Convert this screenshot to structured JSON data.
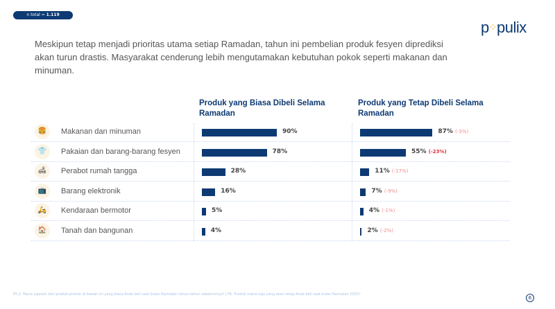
{
  "badge": {
    "label": "n total = ",
    "value": "1.119"
  },
  "logo": "populix",
  "intro": "Meskipun tetap menjadi prioritas utama setiap Ramadan, tahun ini pembelian produk fesyen diprediksi akan turun drastis. Masyarakat cenderung lebih mengutamakan kebutuhan pokok seperti makanan dan minuman.",
  "chart_data": {
    "type": "bar",
    "orientation": "horizontal",
    "categories": [
      "Makanan dan minuman",
      "Pakaian dan barang-barang fesyen",
      "Perabot rumah tangga",
      "Barang elektronik",
      "Kendaraan bermotor",
      "Tanah dan bangunan"
    ],
    "icons": [
      "food-icon",
      "clothing-icon",
      "furniture-icon",
      "electronics-icon",
      "motorcycle-icon",
      "house-icon"
    ],
    "icon_glyphs": [
      "🍔",
      "👕",
      "🛋",
      "📺",
      "🛵",
      "🏠"
    ],
    "series": [
      {
        "name": "Produk yang Biasa Dibeli Selama Ramadan",
        "values": [
          90,
          78,
          28,
          16,
          5,
          4
        ],
        "labels": [
          "90%",
          "78%",
          "28%",
          "16%",
          "5%",
          "4%"
        ]
      },
      {
        "name": "Produk yang Tetap Dibeli Selama Ramadan",
        "values": [
          87,
          55,
          11,
          7,
          4,
          2
        ],
        "labels": [
          "87%",
          "55%",
          "11%",
          "7%",
          "4%",
          "2%"
        ],
        "changes": [
          "(-3%)",
          "(-23%)",
          "(-17%)",
          "(-9%)",
          "(-1%)",
          "(-2%)"
        ],
        "significant": [
          false,
          true,
          false,
          false,
          false,
          false
        ]
      }
    ],
    "bar_color": "#0d3a73",
    "change_color": "#f08a8a",
    "significant_color": "#e0303b",
    "xlim": [
      0,
      100
    ]
  },
  "footnote": "P5.2. Mana sajakah dari produk-produk di bawah ini yang biasa Anda beli saat bulan Ramadan tahun-tahun sebelumnya? | P6. Produk mana saja yang akan tetap Anda beli saat bulan Ramadan 2025?",
  "page_number": "6"
}
